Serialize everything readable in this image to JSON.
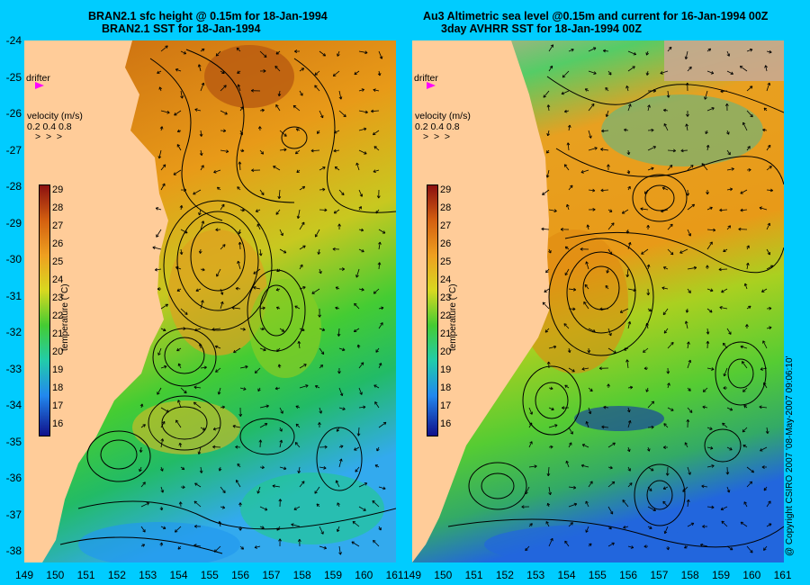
{
  "left_panel": {
    "title_line1": "BRAN2.1 sfc height @ 0.15m for 18-Jan-1994",
    "title_line2": "BRAN2.1 SST for 18-Jan-1994",
    "drifter_label": "drifter",
    "velocity_label": "velocity (m/s)",
    "velocity_scale": "0.2 0.4 0.8",
    "colorbar_label": "temperature (°C)"
  },
  "right_panel": {
    "title_line1": "Au3 Altimetric sea level  @0.15m and current for 16-Jan-1994 00Z",
    "title_line2": "3day AVHRR SST for 18-Jan-1994 00Z",
    "drifter_label": "drifter",
    "velocity_label": "velocity (m/s)",
    "velocity_scale": "0.2 0.4 0.8",
    "colorbar_label": "temperature (°C)"
  },
  "latitudes": [
    "-24",
    "-25",
    "-26",
    "-27",
    "-28",
    "-29",
    "-30",
    "-31",
    "-32",
    "-33",
    "-34",
    "-35",
    "-36",
    "-37",
    "-38"
  ],
  "longitudes_left": [
    "149",
    "150",
    "151",
    "152",
    "153",
    "154",
    "155",
    "156",
    "157",
    "158",
    "159",
    "160",
    "161"
  ],
  "longitudes_right": [
    "149",
    "150",
    "151",
    "152",
    "153",
    "154",
    "155",
    "156",
    "157",
    "158",
    "159",
    "160",
    "161"
  ],
  "colorbar_ticks": [
    "29",
    "28",
    "27",
    "26",
    "25",
    "24",
    "23",
    "22",
    "21",
    "20",
    "19",
    "18",
    "17",
    "16"
  ],
  "copyright": "@ Copyright CSIRO 2007  '08-May-2007 09:06:10'",
  "colors": {
    "background": "#00ccff",
    "land": "#ffcc99",
    "warm": "#e08a10",
    "cool": "#22cc55",
    "drifter": "#ff00ff"
  }
}
